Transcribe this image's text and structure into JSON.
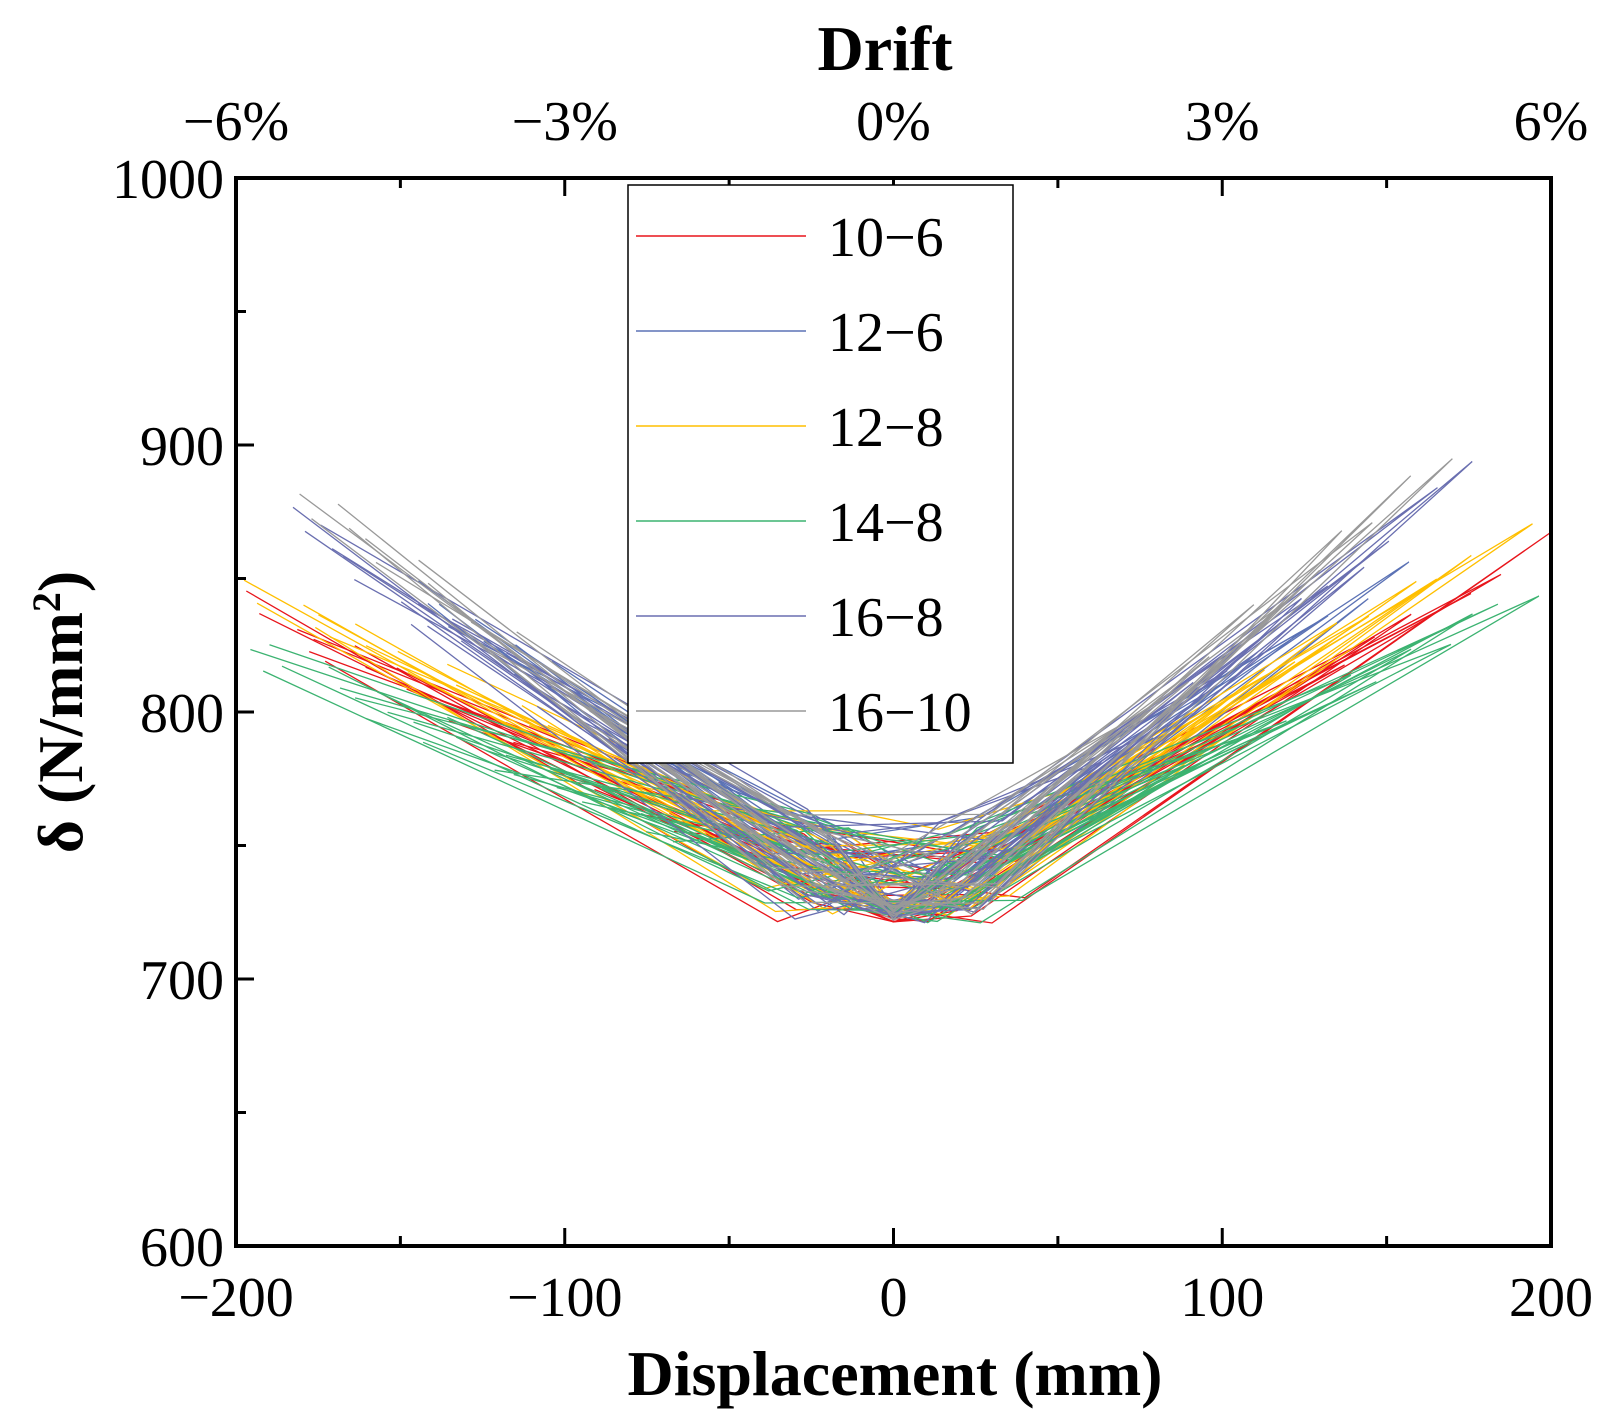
{
  "chart_data": {
    "type": "line",
    "title": "",
    "xlabel": "Displacement (mm)",
    "ylabel_main": "δ (N/mm",
    "ylabel_sup": "2",
    "ylabel_close": ")",
    "top_axis_title": "Drift",
    "xlim": [
      -200,
      200
    ],
    "ylim": [
      600,
      1000
    ],
    "x_ticks": [
      -200,
      -100,
      0,
      100,
      200
    ],
    "x_tick_labels": [
      "−200",
      "−100",
      "0",
      "100",
      "200"
    ],
    "y_ticks": [
      600,
      700,
      800,
      900,
      1000
    ],
    "y_tick_labels": [
      "600",
      "700",
      "800",
      "900",
      "1000"
    ],
    "top_ticks": [
      -200,
      -100,
      0,
      100,
      200
    ],
    "top_tick_labels": [
      "−6%",
      "−3%",
      "0%",
      "3%",
      "6%"
    ],
    "legend_position": "top-center",
    "series": [
      {
        "name": "10−6",
        "color": "#e8151b",
        "max_pos": 200,
        "max_neg": -200,
        "y_at_pos": 866,
        "y_at_neg": 846,
        "y_min": 721,
        "n_cycles": 12
      },
      {
        "name": "12−6",
        "color": "#5b72b5",
        "max_pos": 160,
        "max_neg": -150,
        "y_at_pos": 860,
        "y_at_neg": 855,
        "y_min": 724,
        "n_cycles": 10
      },
      {
        "name": "12−8",
        "color": "#ffbf00",
        "max_pos": 195,
        "max_neg": -200,
        "y_at_pos": 875,
        "y_at_neg": 855,
        "y_min": 724,
        "n_cycles": 12
      },
      {
        "name": "14−8",
        "color": "#3cb371",
        "max_pos": 200,
        "max_neg": -200,
        "y_at_pos": 848,
        "y_at_neg": 828,
        "y_min": 722,
        "n_cycles": 14
      },
      {
        "name": "16−8",
        "color": "#6a6fb0",
        "max_pos": 178,
        "max_neg": -190,
        "y_at_pos": 891,
        "y_at_neg": 878,
        "y_min": 722,
        "n_cycles": 12
      },
      {
        "name": "16−10",
        "color": "#999999",
        "max_pos": 170,
        "max_neg": -182,
        "y_at_pos": 898,
        "y_at_neg": 886,
        "y_min": 722,
        "n_cycles": 12
      }
    ]
  }
}
